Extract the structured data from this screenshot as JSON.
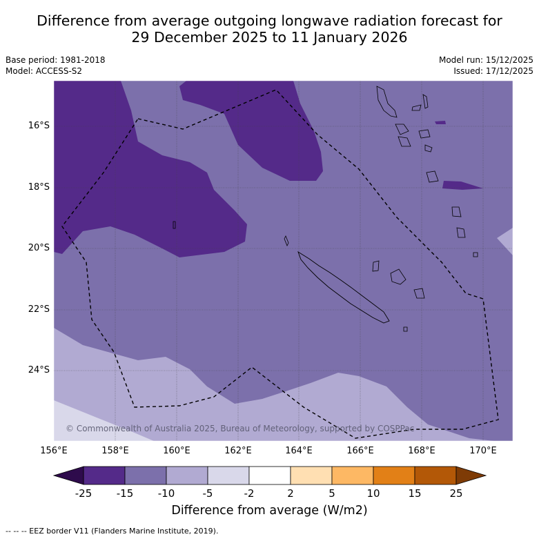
{
  "title_line1": "Difference from average outgoing longwave radiation forecast for",
  "title_line2": "29 December 2025 to 11 January 2026",
  "base_period": "Base period: 1981-2018",
  "model": "Model: ACCESS-S2",
  "model_run": "Model run: 15/12/2025",
  "issued": "Issued: 17/12/2025",
  "lat_labels": [
    "16°S",
    "18°S",
    "20°S",
    "22°S",
    "24°S"
  ],
  "lon_labels": [
    "156°E",
    "158°E",
    "160°E",
    "162°E",
    "164°E",
    "166°E",
    "168°E",
    "170°E"
  ],
  "copyright": "© Commonwealth of Australia 2025, Bureau of Meteorology, supported by COSPPac",
  "colorbar": {
    "labels": [
      "-25",
      "-15",
      "-10",
      "-5",
      "-2",
      "2",
      "5",
      "10",
      "15",
      "25"
    ],
    "colors": [
      "#542a89",
      "#7c70ab",
      "#b1aad2",
      "#d9d8ea",
      "#ffffff",
      "#ffdfb2",
      "#fdb864",
      "#e28017",
      "#b35807"
    ],
    "low_extend_color": "#2e0b4c",
    "high_extend_color": "#7e3b06",
    "title": "Difference from average (W/m2)"
  },
  "legend_footer": "--  --  -- EEZ border V11 (Flanders Marine Institute, 2019)."
}
